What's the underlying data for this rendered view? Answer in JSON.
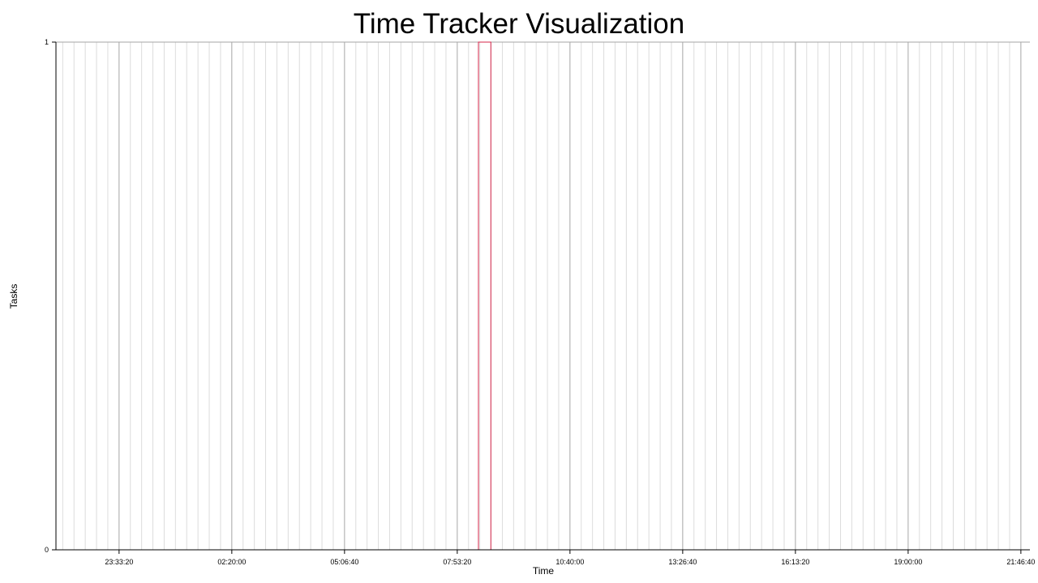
{
  "chart_data": {
    "type": "bar",
    "title": "Time Tracker Visualization",
    "xlabel": "Time",
    "ylabel": "Tasks",
    "x_ticks": [
      {
        "label": "23:33:20",
        "seconds": 84800
      },
      {
        "label": "02:20:00",
        "seconds": 94800
      },
      {
        "label": "05:06:40",
        "seconds": 104800
      },
      {
        "label": "07:53:20",
        "seconds": 114800
      },
      {
        "label": "10:40:00",
        "seconds": 124800
      },
      {
        "label": "13:26:40",
        "seconds": 134800
      },
      {
        "label": "16:13:20",
        "seconds": 144800
      },
      {
        "label": "19:00:00",
        "seconds": 154800
      },
      {
        "label": "21:46:40",
        "seconds": 164800
      }
    ],
    "y_ticks": [
      "0",
      "1"
    ],
    "xlim": [
      79200,
      165600
    ],
    "ylim": [
      0,
      1
    ],
    "grid": true,
    "bars": [
      {
        "start": 116680,
        "end": 117780,
        "value": 1
      }
    ],
    "colors": {
      "bar_stroke": "#d6254a",
      "grid_major": "#a6a6a6",
      "grid_minor": "#dcdcdc",
      "axis": "#000000"
    }
  }
}
